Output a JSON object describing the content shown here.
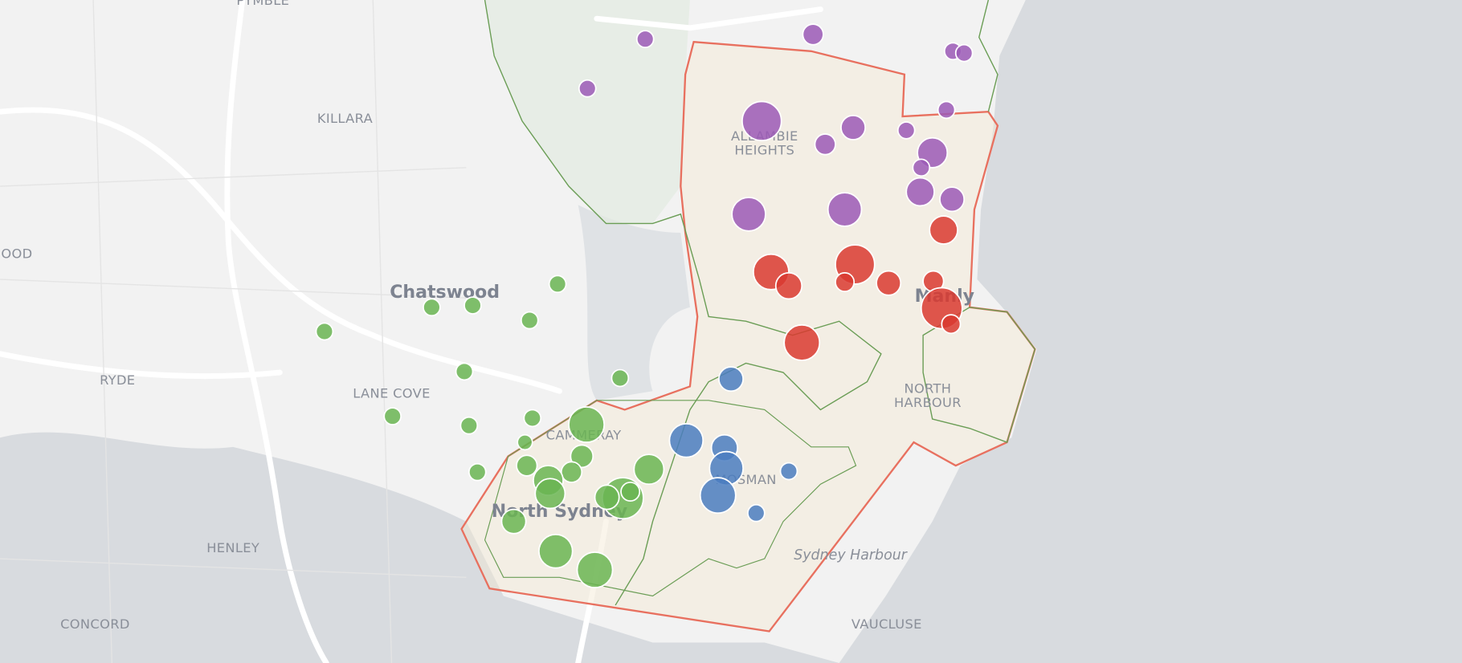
{
  "place_labels": [
    [
      "PYMBLE"
    ],
    [
      "KILLARA"
    ],
    [
      "OOD"
    ],
    [
      "Chatswood"
    ],
    [
      "RYDE"
    ],
    [
      "LANE COVE"
    ],
    [
      "HENLEY"
    ],
    [
      "CONCORD"
    ],
    [
      "ALLAMBIE",
      "HEIGHTS"
    ],
    [
      "Manly"
    ],
    [
      "NORTH",
      "HARBOUR"
    ],
    [
      "CAMMERAY"
    ],
    [
      "MOSMAN"
    ],
    [
      "North Sydney"
    ],
    [
      "Sydney Harbour"
    ],
    [
      "VAUCLUSE"
    ]
  ]
}
